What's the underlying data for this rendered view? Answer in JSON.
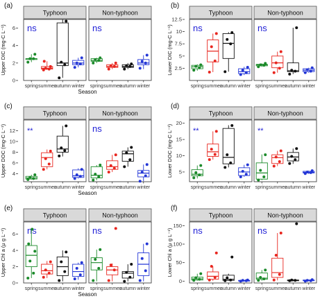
{
  "figure": {
    "season_colors": {
      "spring": "#1b8a2a",
      "summer": "#e8261f",
      "autumn": "#111111",
      "winter": "#2336d6"
    },
    "strip_fill": "#d9d9d9",
    "ns_color": "#1f1fd6"
  },
  "chart_data": [
    {
      "type": "boxplot",
      "panel": "(a)",
      "ylabel": "Upper DIC (mg-C L⁻¹)",
      "xlabel": "Season",
      "ylim": [
        0,
        7
      ],
      "yticks": [
        0,
        2,
        4,
        6
      ],
      "groups": [
        "Typhoon",
        "Non-typhoon"
      ],
      "categories": [
        "spring",
        "summer",
        "autumn",
        "winter"
      ],
      "annotations": [
        "ns",
        "ns"
      ],
      "series": [
        {
          "group": "Typhoon",
          "season": "spring",
          "stats": [
            2.1,
            2.4,
            2.5,
            2.5,
            3.0
          ],
          "points": [
            2.1,
            2.5,
            2.5,
            3.0
          ]
        },
        {
          "group": "Typhoon",
          "season": "summer",
          "stats": [
            1.2,
            1.3,
            1.4,
            1.6,
            2.2
          ],
          "points": [
            1.2,
            1.3,
            1.4,
            1.6,
            2.2
          ]
        },
        {
          "group": "Typhoon",
          "season": "autumn",
          "stats": [
            0.3,
            1.7,
            2.0,
            6.6,
            7.0
          ],
          "points": [
            0.3,
            1.8,
            2.1,
            6.8
          ]
        },
        {
          "group": "Typhoon",
          "season": "winter",
          "stats": [
            1.5,
            1.8,
            2.0,
            2.3,
            2.6
          ],
          "points": [
            1.5,
            1.9,
            2.0,
            2.6
          ]
        },
        {
          "group": "Non-typhoon",
          "season": "spring",
          "stats": [
            2.0,
            2.2,
            2.3,
            2.5,
            2.6
          ],
          "points": [
            2.0,
            2.3,
            2.4,
            2.6
          ]
        },
        {
          "group": "Non-typhoon",
          "season": "summer",
          "stats": [
            1.3,
            1.5,
            1.6,
            1.8,
            2.0
          ],
          "points": [
            1.3,
            1.6,
            1.7,
            2.0
          ]
        },
        {
          "group": "Non-typhoon",
          "season": "autumn",
          "stats": [
            1.3,
            1.5,
            1.6,
            1.8,
            2.0
          ],
          "points": [
            1.3,
            1.6,
            1.7,
            1.9
          ]
        },
        {
          "group": "Non-typhoon",
          "season": "winter",
          "stats": [
            1.3,
            1.8,
            2.0,
            2.4,
            2.9
          ],
          "points": [
            1.4,
            2.0,
            2.2,
            2.9
          ]
        }
      ]
    },
    {
      "type": "boxplot",
      "panel": "(b)",
      "ylabel": "Lower DIC (mg-C L⁻¹)",
      "xlabel": "",
      "ylim": [
        0,
        12.5
      ],
      "yticks": [
        2.5,
        5.0,
        7.5,
        10.0,
        12.5
      ],
      "groups": [
        "Typhoon",
        "Non-typhoon"
      ],
      "categories": [
        "spring",
        "summer",
        "autumn",
        "winter"
      ],
      "annotations": [
        "ns",
        "ns"
      ],
      "series": [
        {
          "group": "Typhoon",
          "season": "spring",
          "stats": [
            2.0,
            2.4,
            2.8,
            3.1,
            3.3
          ],
          "points": [
            2.1,
            2.6,
            2.9,
            3.2
          ]
        },
        {
          "group": "Typhoon",
          "season": "summer",
          "stats": [
            1.7,
            3.8,
            6.0,
            8.3,
            9.6
          ],
          "points": [
            1.7,
            4.0,
            6.9,
            9.6
          ]
        },
        {
          "group": "Typhoon",
          "season": "autumn",
          "stats": [
            1.8,
            4.5,
            7.6,
            9.6,
            9.9
          ],
          "points": [
            1.8,
            7.5,
            8.4,
            9.8
          ]
        },
        {
          "group": "Typhoon",
          "season": "winter",
          "stats": [
            1.1,
            1.4,
            1.8,
            2.4,
            2.8
          ],
          "points": [
            1.2,
            1.6,
            2.1,
            2.7
          ]
        },
        {
          "group": "Non-typhoon",
          "season": "spring",
          "stats": [
            2.8,
            3.0,
            3.2,
            3.3,
            3.5
          ],
          "points": [
            2.8,
            3.1,
            3.2,
            3.5
          ]
        },
        {
          "group": "Non-typhoon",
          "season": "summer",
          "stats": [
            1.6,
            2.6,
            3.6,
            5.0,
            5.9
          ],
          "points": [
            1.6,
            2.5,
            3.6,
            5.9
          ]
        },
        {
          "group": "Non-typhoon",
          "season": "autumn",
          "stats": [
            1.3,
            1.8,
            2.0,
            3.6,
            10.8
          ],
          "points": [
            1.3,
            1.9,
            2.1,
            10.8
          ]
        },
        {
          "group": "Non-typhoon",
          "season": "winter",
          "stats": [
            1.6,
            1.8,
            2.1,
            2.4,
            2.6
          ],
          "points": [
            1.6,
            1.9,
            2.2,
            2.6
          ]
        }
      ]
    },
    {
      "type": "boxplot",
      "panel": "(c)",
      "ylabel": "Upper DOC (mg-C L⁻¹)",
      "xlabel": "Season",
      "ylim": [
        2.5,
        14
      ],
      "yticks": [
        4,
        6,
        8,
        10,
        12
      ],
      "groups": [
        "Typhoon",
        "Non-typhoon"
      ],
      "categories": [
        "spring",
        "summer",
        "autumn",
        "winter"
      ],
      "annotations": [
        "**",
        "ns"
      ],
      "series": [
        {
          "group": "Typhoon",
          "season": "spring",
          "stats": [
            2.9,
            3.0,
            3.2,
            3.5,
            3.8
          ],
          "points": [
            2.9,
            3.1,
            3.3,
            3.8
          ]
        },
        {
          "group": "Typhoon",
          "season": "summer",
          "stats": [
            4.8,
            5.3,
            7.0,
            7.9,
            8.5
          ],
          "points": [
            4.8,
            5.8,
            6.8,
            8.2
          ]
        },
        {
          "group": "Typhoon",
          "season": "autumn",
          "stats": [
            7.2,
            8.0,
            8.6,
            11.0,
            12.9
          ],
          "points": [
            7.3,
            8.3,
            8.8,
            12.9
          ]
        },
        {
          "group": "Typhoon",
          "season": "winter",
          "stats": [
            3.1,
            3.3,
            3.6,
            4.7,
            5.0
          ],
          "points": [
            3.1,
            3.5,
            3.8,
            4.8
          ]
        },
        {
          "group": "Non-typhoon",
          "season": "spring",
          "stats": [
            2.8,
            3.2,
            3.7,
            5.3,
            5.6
          ],
          "points": [
            2.8,
            3.4,
            3.9,
            5.6
          ]
        },
        {
          "group": "Non-typhoon",
          "season": "summer",
          "stats": [
            4.3,
            4.8,
            5.3,
            6.4,
            7.5
          ],
          "points": [
            4.3,
            5.0,
            5.5,
            7.5
          ]
        },
        {
          "group": "Non-typhoon",
          "season": "autumn",
          "stats": [
            5.3,
            6.3,
            7.7,
            8.2,
            8.9
          ],
          "points": [
            5.3,
            6.6,
            7.9,
            8.9
          ]
        },
        {
          "group": "Non-typhoon",
          "season": "winter",
          "stats": [
            2.6,
            3.4,
            4.1,
            4.6,
            5.7
          ],
          "points": [
            2.6,
            3.6,
            4.3,
            5.7
          ]
        }
      ]
    },
    {
      "type": "boxplot",
      "panel": "(d)",
      "ylabel": "Lower DOC (mg-C L⁻¹)",
      "xlabel": "",
      "ylim": [
        2,
        21
      ],
      "yticks": [
        5,
        10,
        15,
        20
      ],
      "groups": [
        "Typhoon",
        "Non-typhoon"
      ],
      "categories": [
        "spring",
        "summer",
        "autumn",
        "winter"
      ],
      "annotations": [
        "**",
        "**"
      ],
      "series": [
        {
          "group": "Typhoon",
          "season": "spring",
          "stats": [
            3.0,
            3.8,
            4.3,
            5.7,
            7.0
          ],
          "points": [
            3.2,
            4.1,
            4.8,
            7.0
          ]
        },
        {
          "group": "Typhoon",
          "season": "summer",
          "stats": [
            8.8,
            9.8,
            11.2,
            13.6,
            17.5
          ],
          "points": [
            8.8,
            10.4,
            12.0,
            17.5
          ]
        },
        {
          "group": "Typhoon",
          "season": "autumn",
          "stats": [
            6.4,
            7.5,
            9.5,
            18.4,
            19.4
          ],
          "points": [
            6.4,
            7.8,
            10.3,
            19.3
          ]
        },
        {
          "group": "Typhoon",
          "season": "winter",
          "stats": [
            3.5,
            3.9,
            5.0,
            6.3,
            7.2
          ],
          "points": [
            3.5,
            4.3,
            5.2,
            7.2
          ]
        },
        {
          "group": "Non-typhoon",
          "season": "spring",
          "stats": [
            2.5,
            2.8,
            4.7,
            7.8,
            10.4
          ],
          "points": [
            2.5,
            3.5,
            5.5,
            10.3
          ]
        },
        {
          "group": "Non-typhoon",
          "season": "summer",
          "stats": [
            6.8,
            7.6,
            9.4,
            10.3,
            11.5
          ],
          "points": [
            6.8,
            8.2,
            9.6,
            11.5
          ]
        },
        {
          "group": "Non-typhoon",
          "season": "autumn",
          "stats": [
            7.5,
            8.4,
            9.6,
            11.0,
            12.2
          ],
          "points": [
            7.6,
            8.8,
            9.8,
            12.2
          ]
        },
        {
          "group": "Non-typhoon",
          "season": "winter",
          "stats": [
            4.4,
            4.7,
            4.9,
            5.2,
            5.4
          ],
          "points": [
            4.5,
            4.8,
            5.0,
            5.4
          ]
        }
      ]
    },
    {
      "type": "boxplot",
      "panel": "(e)",
      "ylabel": "Upper Chl a (μ g L⁻¹)",
      "xlabel": "Season",
      "ylim": [
        0,
        7.5
      ],
      "yticks": [
        0,
        2,
        4,
        6
      ],
      "groups": [
        "Typhoon",
        "Non-typhoon"
      ],
      "categories": [
        "spring",
        "summer",
        "autumn",
        "winter"
      ],
      "annotations": [
        "ns",
        "ns"
      ],
      "series": [
        {
          "group": "Typhoon",
          "season": "spring",
          "stats": [
            0.6,
            2.0,
            3.4,
            4.6,
            6.6
          ],
          "points": [
            0.6,
            1.2,
            2.7,
            3.9,
            4.8,
            6.6
          ]
        },
        {
          "group": "Typhoon",
          "season": "summer",
          "stats": [
            0.6,
            1.1,
            1.5,
            2.3,
            2.7
          ],
          "points": [
            0.7,
            1.2,
            1.6,
            2.6
          ]
        },
        {
          "group": "Typhoon",
          "season": "autumn",
          "stats": [
            0.2,
            0.9,
            2.0,
            3.2,
            4.0
          ],
          "points": [
            0.3,
            1.4,
            2.6,
            3.8
          ]
        },
        {
          "group": "Typhoon",
          "season": "winter",
          "stats": [
            0.4,
            0.8,
            1.4,
            2.3,
            2.5
          ],
          "points": [
            0.5,
            1.0,
            1.8,
            2.5
          ]
        },
        {
          "group": "Non-typhoon",
          "season": "spring",
          "stats": [
            0.2,
            1.6,
            2.5,
            3.1,
            4.1
          ],
          "points": [
            0.3,
            1.8,
            2.9,
            4.1
          ]
        },
        {
          "group": "Non-typhoon",
          "season": "summer",
          "stats": [
            0.2,
            1.0,
            1.6,
            2.0,
            2.4
          ],
          "points": [
            0.3,
            1.6,
            2.2,
            6.7
          ]
        },
        {
          "group": "Non-typhoon",
          "season": "autumn",
          "stats": [
            0.2,
            0.6,
            1.2,
            1.4,
            2.3
          ],
          "points": [
            0.2,
            0.7,
            1.3,
            2.3
          ]
        },
        {
          "group": "Non-typhoon",
          "season": "winter",
          "stats": [
            0.2,
            0.9,
            2.3,
            3.7,
            4.8
          ],
          "points": [
            0.3,
            1.5,
            3.0,
            4.8
          ]
        }
      ]
    },
    {
      "type": "boxplot",
      "panel": "(f)",
      "ylabel": "Lower Chl a (μ g L⁻¹)",
      "xlabel": "",
      "ylim": [
        -5,
        160
      ],
      "yticks": [
        0,
        50,
        100,
        150
      ],
      "groups": [
        "Typhoon",
        "Non-typhoon"
      ],
      "categories": [
        "spring",
        "summer",
        "autumn",
        "winter"
      ],
      "annotations": [
        "ns",
        "ns"
      ],
      "series": [
        {
          "group": "Typhoon",
          "season": "spring",
          "stats": [
            1,
            3,
            6,
            11,
            20
          ],
          "points": [
            2,
            5,
            9,
            20
          ]
        },
        {
          "group": "Typhoon",
          "season": "summer",
          "stats": [
            1,
            5,
            13,
            25,
            40
          ],
          "points": [
            3,
            10,
            40,
            76
          ]
        },
        {
          "group": "Typhoon",
          "season": "autumn",
          "stats": [
            1,
            2,
            5,
            16,
            20
          ],
          "points": [
            1,
            3,
            9,
            65
          ]
        },
        {
          "group": "Typhoon",
          "season": "winter",
          "stats": [
            0,
            0,
            1,
            2,
            3
          ],
          "points": [
            0,
            1,
            2,
            3
          ]
        },
        {
          "group": "Non-typhoon",
          "season": "spring",
          "stats": [
            1,
            5,
            8,
            22,
            30
          ],
          "points": [
            2,
            6,
            10,
            30
          ]
        },
        {
          "group": "Non-typhoon",
          "season": "summer",
          "stats": [
            2,
            10,
            23,
            62,
            130
          ],
          "points": [
            3,
            18,
            70,
            130
          ]
        },
        {
          "group": "Non-typhoon",
          "season": "autumn",
          "stats": [
            0,
            1,
            2,
            3,
            5
          ],
          "points": [
            1,
            2,
            3,
            155
          ]
        },
        {
          "group": "Non-typhoon",
          "season": "winter",
          "stats": [
            0,
            1,
            2,
            3,
            4
          ],
          "points": [
            0,
            1,
            2,
            4
          ]
        }
      ]
    }
  ]
}
